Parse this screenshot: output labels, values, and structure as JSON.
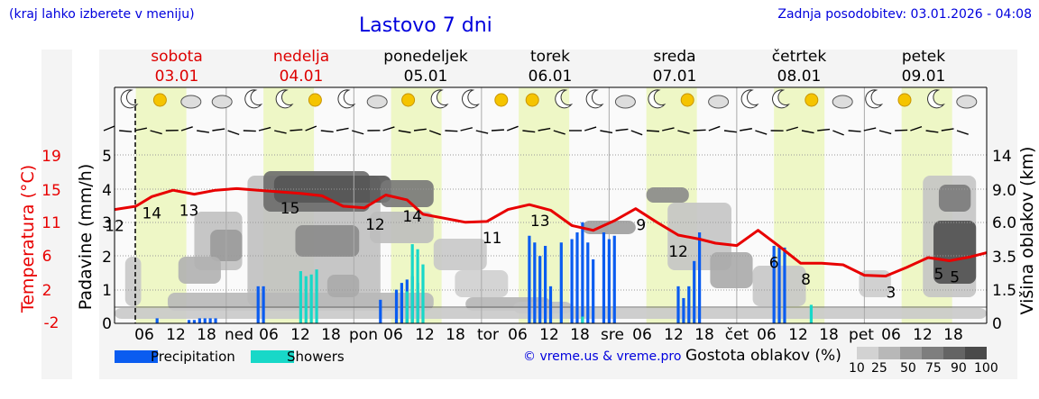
{
  "header": {
    "note": "(kraj lahko izberete v meniju)",
    "title": "Lastovo 7 dni",
    "update": "Zadnja posodobitev: 03.01.2026 - 04:08"
  },
  "days": [
    {
      "name": "sobota",
      "date": "03.01",
      "weekend": true
    },
    {
      "name": "nedelja",
      "date": "04.01",
      "weekend": true
    },
    {
      "name": "ponedeljek",
      "date": "05.01",
      "weekend": false
    },
    {
      "name": "torek",
      "date": "06.01",
      "weekend": false
    },
    {
      "name": "sreda",
      "date": "07.01",
      "weekend": false
    },
    {
      "name": "četrtek",
      "date": "08.01",
      "weekend": false
    },
    {
      "name": "petek",
      "date": "09.01",
      "weekend": false
    }
  ],
  "x_axis": {
    "day_abbr": [
      "ned",
      "pon",
      "tor",
      "sre",
      "čet",
      "pet"
    ],
    "hours": [
      "06",
      "12",
      "18"
    ]
  },
  "colors": {
    "temperature": "#e80000",
    "precipitation": "#0a5cf0",
    "showers": "#18d8c8",
    "weekend": "#dd0000",
    "daylight": "#eef7c6",
    "link": "#0000dd"
  },
  "chart_data": {
    "type": "line",
    "title": "Lastovo 7 dni",
    "left_axes": [
      {
        "label": "Temperatura (°C)",
        "ticks": [
          "19",
          "15",
          "11",
          "6",
          "2",
          "-2"
        ],
        "ylim": [
          -2,
          19
        ]
      },
      {
        "label": "Padavine (mm/h)",
        "ticks": [
          "5",
          "4",
          "3",
          "2",
          "1",
          "0"
        ],
        "ylim": [
          0,
          5
        ]
      }
    ],
    "right_axis": {
      "label": "Višina oblakov (km)",
      "ticks": [
        "14",
        "9.0",
        "6.0",
        "3.5",
        "1.5",
        "0"
      ]
    },
    "x_hours_start": 0,
    "x_hours_end": 164,
    "temperature_series": {
      "hours": [
        0,
        4,
        7,
        11,
        15,
        19,
        23,
        27,
        31,
        35,
        39,
        43,
        47,
        51,
        55,
        58,
        62,
        66,
        70,
        74,
        78,
        82,
        86,
        90,
        94,
        98,
        102,
        106,
        110,
        113,
        117,
        121,
        125,
        129,
        133,
        137,
        141,
        145,
        149,
        153,
        157,
        161,
        164
      ],
      "values": [
        12.2,
        12.6,
        13.8,
        14.6,
        14.1,
        14.6,
        14.8,
        14.6,
        14.4,
        14.2,
        13.9,
        12.6,
        12.4,
        14.0,
        13.4,
        11.6,
        11.1,
        10.6,
        10.7,
        12.2,
        12.8,
        12.1,
        10.2,
        9.6,
        10.8,
        12.3,
        10.6,
        9.0,
        8.5,
        8.0,
        7.7,
        9.6,
        7.6,
        5.5,
        5.5,
        5.3,
        4.0,
        3.9,
        5.0,
        6.2,
        5.8,
        6.3,
        6.8
      ]
    },
    "temperature_labels": [
      {
        "hour": 0,
        "value": "12"
      },
      {
        "hour": 7,
        "value": "14"
      },
      {
        "hour": 14,
        "value": "13"
      },
      {
        "hour": 33,
        "value": "15"
      },
      {
        "hour": 49,
        "value": "12"
      },
      {
        "hour": 56,
        "value": "14"
      },
      {
        "hour": 71,
        "value": "11"
      },
      {
        "hour": 80,
        "value": "13"
      },
      {
        "hour": 99,
        "value": "9"
      },
      {
        "hour": 106,
        "value": "12"
      },
      {
        "hour": 124,
        "value": "6"
      },
      {
        "hour": 130,
        "value": "8"
      },
      {
        "hour": 146,
        "value": "3"
      },
      {
        "hour": 155,
        "value": "5"
      },
      {
        "hour": 158,
        "value": "5"
      }
    ],
    "precipitation": {
      "hours": [
        8,
        14,
        15,
        16,
        17,
        18,
        19,
        27,
        28,
        50,
        53,
        54,
        55,
        56,
        57,
        78,
        79,
        80,
        81,
        82,
        84,
        86,
        87,
        88,
        89,
        90,
        92,
        93,
        94,
        106,
        107,
        108,
        109,
        110,
        124,
        125,
        126
      ],
      "values": [
        0.15,
        0.1,
        0.1,
        0.15,
        0.15,
        0.15,
        0.15,
        1.1,
        1.1,
        0.7,
        1.0,
        1.2,
        1.3,
        1.4,
        1.2,
        2.6,
        2.4,
        2.0,
        2.3,
        1.1,
        2.4,
        2.5,
        2.7,
        3.0,
        2.4,
        1.9,
        2.7,
        2.5,
        2.6,
        1.1,
        0.75,
        1.1,
        1.85,
        2.7,
        2.3,
        2.25,
        2.25
      ]
    },
    "showers": {
      "hours": [
        35,
        36,
        37,
        38,
        55,
        56,
        57,
        58,
        88,
        131
      ],
      "values": [
        1.55,
        1.4,
        1.45,
        1.6,
        0.95,
        2.35,
        2.2,
        1.75,
        0.2,
        0.55
      ]
    },
    "cloud_density_levels": [
      "10",
      "25",
      "50",
      "75",
      "90",
      "100"
    ],
    "legend": [
      {
        "name": "Precipitation"
      },
      {
        "name": "Showers"
      }
    ],
    "cloud_density_title": "Gostota oblakov (%)"
  },
  "credit": "© vreme.us & vreme.pro"
}
